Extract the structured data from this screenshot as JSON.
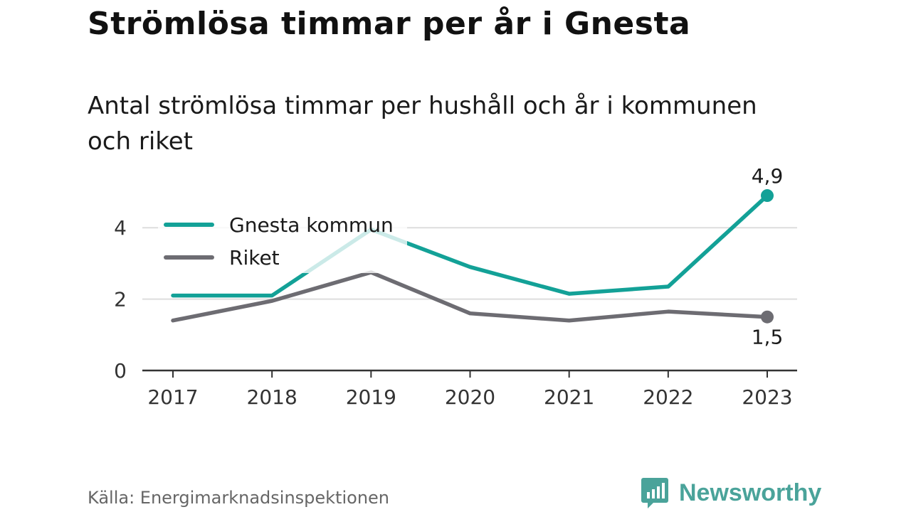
{
  "header": {
    "title": "Strömlösa timmar per år i Gnesta",
    "subtitle": "Antal strömlösa timmar per hushåll och år i kommunen och riket"
  },
  "footer": {
    "source": "Källa: Energimarknadsinspektionen",
    "brand": "Newsworthy"
  },
  "colors": {
    "gnesta": "#13a197",
    "riket": "#6d6c72",
    "grid": "#dddddd",
    "axis": "#333333",
    "brand": "#4aa39a"
  },
  "icons": {
    "brand": "newsworthy-logo-icon"
  },
  "chart_data": {
    "type": "line",
    "x": [
      "2017",
      "2018",
      "2019",
      "2020",
      "2021",
      "2022",
      "2023"
    ],
    "yticks": [
      "0",
      "2",
      "4"
    ],
    "ylim": [
      0,
      5.2
    ],
    "grid": true,
    "legend": "top-left",
    "series": [
      {
        "name": "Gnesta kommun",
        "values": [
          2.1,
          2.1,
          3.95,
          2.9,
          2.15,
          2.35,
          4.9
        ],
        "end_label": "4,9"
      },
      {
        "name": "Riket",
        "values": [
          1.4,
          1.95,
          2.75,
          1.6,
          1.4,
          1.65,
          1.5
        ],
        "end_label": "1,5"
      }
    ]
  }
}
